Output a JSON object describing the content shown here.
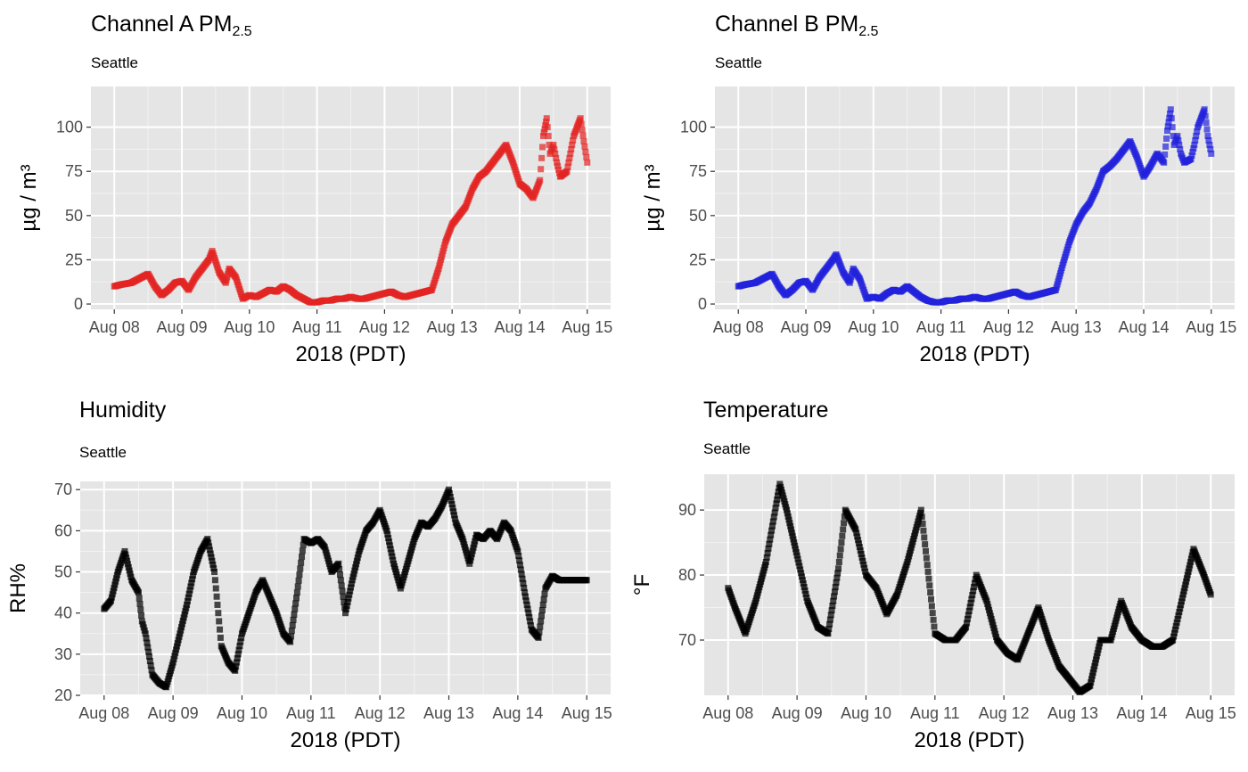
{
  "chart_data": [
    {
      "id": "chA",
      "type": "scatter",
      "title": "Channel A PM",
      "title_sub": "2.5",
      "subtitle": "Seattle",
      "xlabel": "2018 (PDT)",
      "ylabel": "µg / m³",
      "x_ticks": [
        "Aug 08",
        "Aug 09",
        "Aug 10",
        "Aug 11",
        "Aug 12",
        "Aug 13",
        "Aug 14",
        "Aug 15"
      ],
      "xlim_days": [
        0,
        7
      ],
      "y_ticks": [
        0,
        25,
        50,
        75,
        100
      ],
      "ylim": [
        -3,
        123
      ],
      "grid": true,
      "panel_background": "#e5e5e5",
      "point_color": "#e22523",
      "series": [
        {
          "days": [
            0.0,
            0.1,
            0.25,
            0.35,
            0.45,
            0.5,
            0.6,
            0.7,
            0.8,
            0.9,
            1.0,
            1.1,
            1.2,
            1.3,
            1.4,
            1.45,
            1.55,
            1.65,
            1.7,
            1.8,
            1.9,
            2.0,
            2.1,
            2.2,
            2.3,
            2.4,
            2.5,
            2.6,
            2.7,
            2.8,
            2.9,
            3.0,
            3.1,
            3.2,
            3.3,
            3.4,
            3.5,
            3.6,
            3.7,
            3.8,
            3.9,
            4.0,
            4.1,
            4.2,
            4.3,
            4.4,
            4.5,
            4.6,
            4.7,
            4.8,
            4.9,
            5.0,
            5.1,
            5.2,
            5.3,
            5.4,
            5.5,
            5.6,
            5.7,
            5.8,
            5.9,
            6.0,
            6.1,
            6.2,
            6.3,
            6.35,
            6.4,
            6.45,
            6.5,
            6.55,
            6.6,
            6.7,
            6.75,
            6.8,
            6.85,
            6.9,
            6.95,
            7.0
          ],
          "values": [
            10,
            11,
            12,
            14,
            16,
            17,
            10,
            5,
            8,
            12,
            13,
            8,
            15,
            20,
            25,
            30,
            18,
            12,
            20,
            15,
            3,
            5,
            4,
            6,
            8,
            7,
            10,
            8,
            5,
            3,
            1,
            1,
            2,
            2,
            3,
            3,
            4,
            3,
            3,
            4,
            5,
            6,
            7,
            5,
            4,
            5,
            6,
            7,
            8,
            20,
            35,
            45,
            50,
            55,
            65,
            72,
            75,
            80,
            85,
            90,
            80,
            68,
            65,
            60,
            70,
            95,
            105,
            85,
            90,
            80,
            72,
            75,
            85,
            95,
            100,
            105,
            92,
            80
          ]
        }
      ]
    },
    {
      "id": "chB",
      "type": "scatter",
      "title": "Channel B PM",
      "title_sub": "2.5",
      "subtitle": "Seattle",
      "xlabel": "2018 (PDT)",
      "ylabel": "µg / m³",
      "x_ticks": [
        "Aug 08",
        "Aug 09",
        "Aug 10",
        "Aug 11",
        "Aug 12",
        "Aug 13",
        "Aug 14",
        "Aug 15"
      ],
      "xlim_days": [
        0,
        7
      ],
      "y_ticks": [
        0,
        25,
        50,
        75,
        100
      ],
      "ylim": [
        -3,
        123
      ],
      "grid": true,
      "panel_background": "#e5e5e5",
      "point_color": "#2222dd",
      "series": [
        {
          "days": [
            0.0,
            0.1,
            0.25,
            0.35,
            0.45,
            0.5,
            0.6,
            0.7,
            0.8,
            0.9,
            1.0,
            1.1,
            1.2,
            1.3,
            1.4,
            1.45,
            1.55,
            1.65,
            1.7,
            1.8,
            1.9,
            2.0,
            2.1,
            2.2,
            2.3,
            2.4,
            2.5,
            2.6,
            2.7,
            2.8,
            2.9,
            3.0,
            3.1,
            3.2,
            3.3,
            3.4,
            3.5,
            3.6,
            3.7,
            3.8,
            3.9,
            4.0,
            4.1,
            4.2,
            4.3,
            4.4,
            4.5,
            4.6,
            4.7,
            4.8,
            4.9,
            5.0,
            5.1,
            5.2,
            5.3,
            5.4,
            5.5,
            5.6,
            5.7,
            5.8,
            5.9,
            6.0,
            6.1,
            6.2,
            6.3,
            6.35,
            6.4,
            6.45,
            6.5,
            6.55,
            6.6,
            6.7,
            6.75,
            6.8,
            6.85,
            6.9,
            6.95,
            7.0
          ],
          "values": [
            10,
            11,
            12,
            14,
            16,
            17,
            10,
            5,
            8,
            12,
            13,
            8,
            15,
            20,
            25,
            28,
            18,
            12,
            20,
            14,
            3,
            4,
            3,
            6,
            8,
            7,
            10,
            7,
            4,
            2,
            1,
            1,
            2,
            2,
            3,
            3,
            4,
            3,
            3,
            4,
            5,
            6,
            7,
            5,
            4,
            5,
            6,
            7,
            8,
            22,
            35,
            45,
            52,
            57,
            65,
            75,
            78,
            82,
            87,
            92,
            83,
            72,
            78,
            85,
            80,
            98,
            110,
            90,
            95,
            85,
            80,
            82,
            90,
            100,
            105,
            110,
            95,
            85
          ]
        }
      ]
    },
    {
      "id": "hum",
      "type": "scatter",
      "title": "Humidity",
      "subtitle": "Seattle",
      "xlabel": "2018 (PDT)",
      "ylabel": "RH%",
      "x_ticks": [
        "Aug 08",
        "Aug 09",
        "Aug 10",
        "Aug 11",
        "Aug 12",
        "Aug 13",
        "Aug 14",
        "Aug 15"
      ],
      "xlim_days": [
        0,
        7
      ],
      "y_ticks": [
        20,
        30,
        40,
        50,
        60,
        70
      ],
      "ylim": [
        20,
        72
      ],
      "grid": true,
      "panel_background": "#e5e5e5",
      "point_color": "#000000",
      "series": [
        {
          "days": [
            0.0,
            0.1,
            0.2,
            0.3,
            0.4,
            0.5,
            0.55,
            0.6,
            0.7,
            0.8,
            0.9,
            1.0,
            1.1,
            1.2,
            1.3,
            1.4,
            1.5,
            1.6,
            1.7,
            1.8,
            1.9,
            2.0,
            2.1,
            2.2,
            2.3,
            2.4,
            2.5,
            2.6,
            2.7,
            2.8,
            2.9,
            3.0,
            3.1,
            3.2,
            3.3,
            3.4,
            3.5,
            3.6,
            3.7,
            3.8,
            3.9,
            4.0,
            4.1,
            4.2,
            4.3,
            4.4,
            4.5,
            4.6,
            4.7,
            4.8,
            4.9,
            5.0,
            5.1,
            5.2,
            5.3,
            5.4,
            5.5,
            5.6,
            5.7,
            5.8,
            5.9,
            6.0,
            6.1,
            6.2,
            6.3,
            6.4,
            6.5,
            6.6,
            6.7,
            6.8,
            6.9,
            7.0
          ],
          "values": [
            41,
            43,
            50,
            55,
            48,
            45,
            38,
            35,
            25,
            23,
            22,
            28,
            35,
            42,
            50,
            55,
            58,
            50,
            32,
            28,
            26,
            35,
            40,
            45,
            48,
            44,
            40,
            35,
            33,
            45,
            58,
            57,
            58,
            56,
            50,
            52,
            40,
            48,
            55,
            60,
            62,
            65,
            60,
            52,
            46,
            52,
            58,
            62,
            61,
            63,
            66,
            70,
            62,
            58,
            52,
            59,
            58,
            60,
            58,
            62,
            60,
            55,
            45,
            36,
            34,
            46,
            49,
            48,
            48,
            48,
            48,
            48
          ]
        }
      ]
    },
    {
      "id": "temp",
      "type": "scatter",
      "title": "Temperature",
      "subtitle": "Seattle",
      "xlabel": "2018 (PDT)",
      "ylabel": "°F",
      "x_ticks": [
        "Aug 08",
        "Aug 09",
        "Aug 10",
        "Aug 11",
        "Aug 12",
        "Aug 13",
        "Aug 14",
        "Aug 15"
      ],
      "xlim_days": [
        0,
        7
      ],
      "y_ticks": [
        70,
        80,
        90
      ],
      "ylim": [
        61.5,
        95.5
      ],
      "grid": true,
      "panel_background": "#e5e5e5",
      "point_color": "#000000",
      "series": [
        {
          "days": [
            0.0,
            0.1,
            0.25,
            0.4,
            0.55,
            0.7,
            0.75,
            0.85,
            1.0,
            1.15,
            1.3,
            1.45,
            1.6,
            1.7,
            1.85,
            2.0,
            2.15,
            2.3,
            2.45,
            2.6,
            2.7,
            2.8,
            3.0,
            3.15,
            3.3,
            3.45,
            3.6,
            3.75,
            3.9,
            4.05,
            4.2,
            4.35,
            4.5,
            4.65,
            4.8,
            4.95,
            5.1,
            5.25,
            5.4,
            5.55,
            5.7,
            5.85,
            6.0,
            6.15,
            6.3,
            6.45,
            6.6,
            6.75,
            6.9,
            7.0
          ],
          "values": [
            78,
            75,
            71,
            76,
            82,
            91,
            94,
            90,
            83,
            76,
            72,
            71,
            81,
            90,
            87,
            80,
            78,
            74,
            77,
            82,
            86,
            90,
            71,
            70,
            70,
            72,
            80,
            76,
            70,
            68,
            67,
            71,
            75,
            70,
            66,
            64,
            62,
            63,
            70,
            70,
            76,
            72,
            70,
            69,
            69,
            70,
            77,
            84,
            80,
            77
          ]
        }
      ]
    }
  ]
}
